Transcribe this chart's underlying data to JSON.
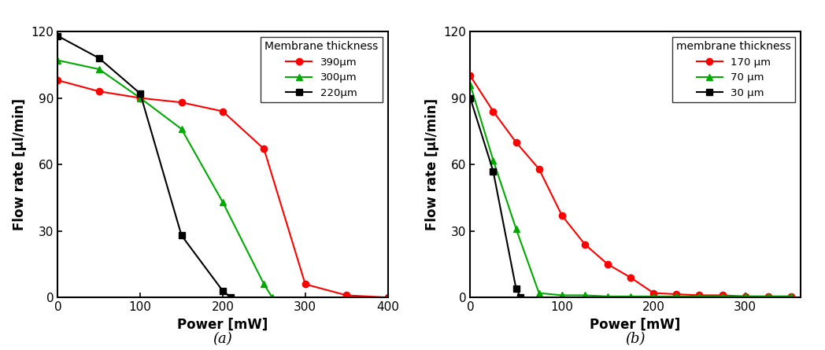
{
  "panel_a": {
    "xlabel": "Power [mW]",
    "ylabel": "Flow rate [μl/min]",
    "xlim": [
      0,
      400
    ],
    "ylim": [
      0,
      120
    ],
    "xticks": [
      0,
      100,
      200,
      300,
      400
    ],
    "yticks": [
      0,
      30,
      60,
      90,
      120
    ],
    "series": [
      {
        "label": "390μm",
        "color": "#ff0000",
        "marker": "o",
        "x": [
          0,
          50,
          100,
          150,
          200,
          250,
          300,
          350,
          400
        ],
        "y": [
          98,
          93,
          90,
          88,
          84,
          67,
          6,
          1,
          0
        ]
      },
      {
        "label": "300μm",
        "color": "#00aa00",
        "marker": "^",
        "x": [
          0,
          50,
          100,
          150,
          200,
          250,
          260
        ],
        "y": [
          107,
          103,
          90,
          76,
          43,
          6,
          0
        ]
      },
      {
        "label": "220μm",
        "color": "#000000",
        "marker": "s",
        "x": [
          0,
          50,
          100,
          150,
          200,
          210
        ],
        "y": [
          118,
          108,
          92,
          28,
          3,
          0
        ]
      }
    ],
    "legend_title": "Membrane thickness",
    "caption": "(a)"
  },
  "panel_b": {
    "xlabel": "Power [mW]",
    "ylabel": "Flow rate [μl/min]",
    "xlim": [
      0,
      360
    ],
    "ylim": [
      0,
      120
    ],
    "xticks": [
      0,
      100,
      200,
      300
    ],
    "yticks": [
      0,
      30,
      60,
      90,
      120
    ],
    "series": [
      {
        "label": "170 μm",
        "color": "#ff0000",
        "marker": "o",
        "x": [
          0,
          25,
          50,
          75,
          100,
          125,
          150,
          175,
          200,
          225,
          250,
          275,
          300,
          325,
          350
        ],
        "y": [
          100,
          84,
          70,
          58,
          37,
          24,
          15,
          9,
          2,
          1.5,
          1,
          1,
          0.5,
          0.5,
          0.5
        ]
      },
      {
        "label": "70 μm",
        "color": "#00aa00",
        "marker": "^",
        "x": [
          0,
          25,
          50,
          75,
          100,
          125,
          150,
          175,
          200,
          225,
          250,
          275,
          300,
          325,
          350
        ],
        "y": [
          96,
          62,
          31,
          2,
          1,
          1,
          0.5,
          0.5,
          0.5,
          0.5,
          0.5,
          0.5,
          0.5,
          0.5,
          0.5
        ]
      },
      {
        "label": "30 μm",
        "color": "#000000",
        "marker": "s",
        "x": [
          0,
          25,
          50,
          55
        ],
        "y": [
          90,
          57,
          4,
          0
        ]
      }
    ],
    "legend_title": "membrane thickness",
    "caption": "(b)"
  }
}
